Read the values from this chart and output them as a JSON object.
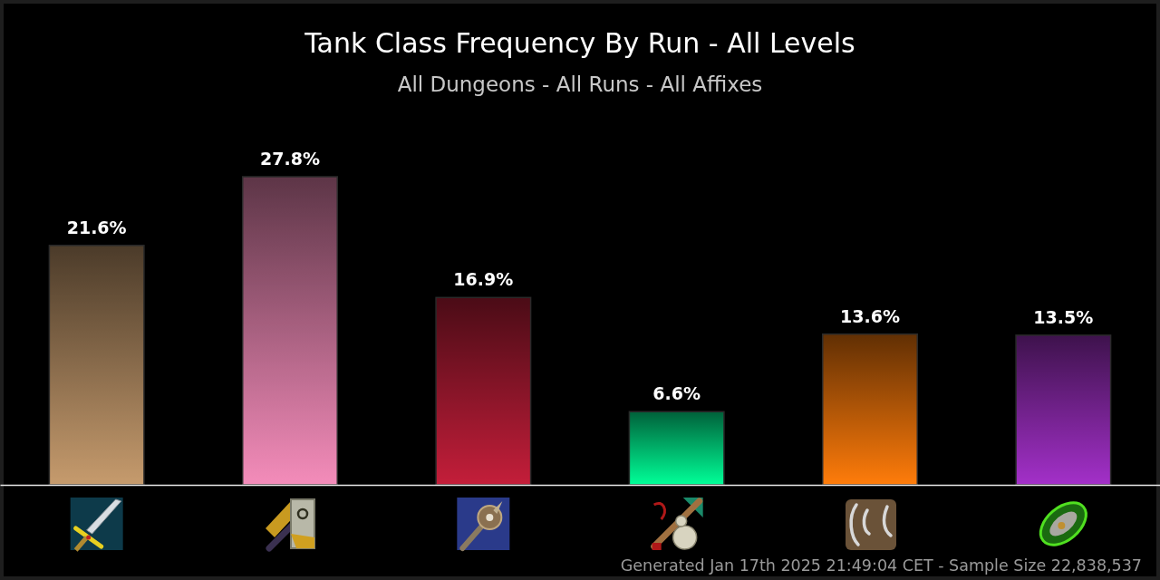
{
  "chart_data": {
    "type": "bar",
    "title": "Tank Class Frequency By Run - All Levels",
    "subtitle": "All Dungeons - All Runs - All Affixes",
    "categories": [
      null,
      null,
      null,
      null,
      null,
      null
    ],
    "values": [
      21.6,
      27.8,
      16.9,
      6.6,
      13.6,
      13.5
    ],
    "value_labels": [
      "21.6%",
      "27.8%",
      "16.9%",
      "6.6%",
      "13.6%",
      "13.5%"
    ],
    "colors": [
      "#c69b6d",
      "#f48cba",
      "#c41e3a",
      "#00ff98",
      "#ff7c0a",
      "#a330c9"
    ],
    "annotations": [
      "Generated Jan 17th 2025 21:49:04 CET - Sample Size 22,838,537"
    ]
  }
}
